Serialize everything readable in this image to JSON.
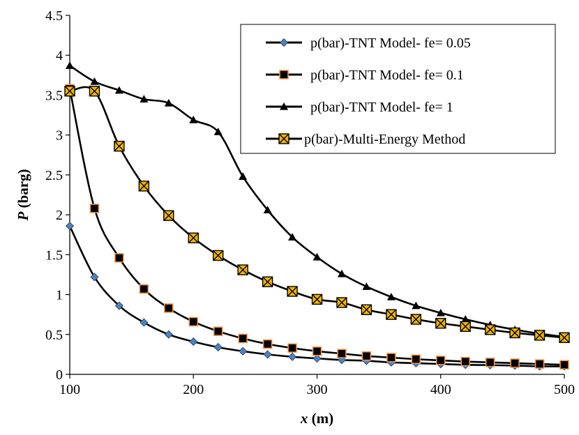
{
  "chart_data": {
    "type": "line",
    "xlabel_var": "x",
    "xlabel_unit": " (m)",
    "ylabel_var": "P",
    "ylabel_unit": " (barg)",
    "xlim": [
      100,
      500
    ],
    "ylim": [
      0,
      4.5
    ],
    "x_ticks": [
      100,
      200,
      300,
      400,
      500
    ],
    "y_ticks": [
      0,
      0.5,
      1,
      1.5,
      2,
      2.5,
      3,
      3.5,
      4,
      4.5
    ],
    "x_tick_labels": [
      "100",
      "200",
      "300",
      "400",
      "500"
    ],
    "y_tick_labels": [
      "0",
      "0.5",
      "1",
      "1.5",
      "2",
      "2.5",
      "3",
      "3.5",
      "4",
      "4.5"
    ],
    "grid": false,
    "legend_position": "top-right",
    "x": [
      100,
      120,
      140,
      160,
      180,
      200,
      220,
      240,
      260,
      280,
      300,
      320,
      340,
      360,
      380,
      400,
      420,
      440,
      460,
      480,
      500
    ],
    "series": [
      {
        "name": "p(bar)-TNT Model- fe= 0.05",
        "marker": "diamond",
        "marker_fill": "#4f81bd",
        "values": [
          1.86,
          1.22,
          0.86,
          0.65,
          0.5,
          0.41,
          0.34,
          0.29,
          0.25,
          0.22,
          0.2,
          0.18,
          0.17,
          0.15,
          0.14,
          0.13,
          0.12,
          0.115,
          0.11,
          0.1,
          0.1
        ]
      },
      {
        "name": "p(bar)-TNT Model- fe= 0.1",
        "marker": "square",
        "marker_fill": "#000000",
        "marker_stroke": "#f79646",
        "values": [
          3.58,
          2.08,
          1.46,
          1.07,
          0.83,
          0.66,
          0.54,
          0.45,
          0.38,
          0.33,
          0.29,
          0.26,
          0.23,
          0.21,
          0.19,
          0.175,
          0.16,
          0.15,
          0.14,
          0.13,
          0.12
        ]
      },
      {
        "name": "p(bar)-TNT Model- fe= 1",
        "marker": "triangle",
        "marker_fill": "#000000",
        "values": [
          3.87,
          3.67,
          3.56,
          3.45,
          3.4,
          3.19,
          3.04,
          2.48,
          2.06,
          1.72,
          1.47,
          1.26,
          1.1,
          0.97,
          0.86,
          0.77,
          0.69,
          0.62,
          0.56,
          0.51,
          0.47
        ]
      },
      {
        "name": "p(bar)-Multi-Energy Method",
        "marker": "x-square",
        "marker_fill": "#f0b400",
        "values": [
          3.55,
          3.55,
          2.86,
          2.36,
          1.99,
          1.71,
          1.49,
          1.31,
          1.16,
          1.04,
          0.94,
          0.9,
          0.81,
          0.75,
          0.69,
          0.64,
          0.6,
          0.56,
          0.52,
          0.49,
          0.46
        ]
      }
    ]
  }
}
